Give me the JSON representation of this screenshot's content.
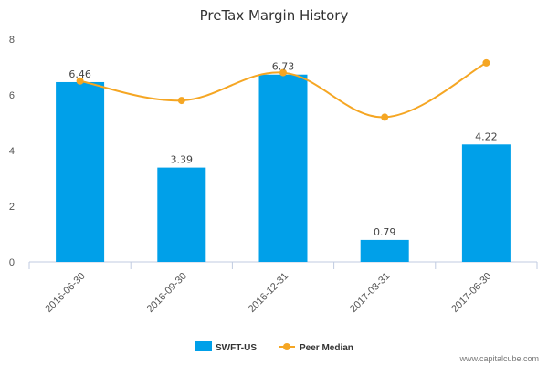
{
  "chart_data": {
    "type": "bar",
    "title": "PreTax Margin History",
    "xlabel": "",
    "ylabel": "",
    "categories": [
      "2016-06-30",
      "2016-09-30",
      "2016-12-31",
      "2017-03-31",
      "2017-06-30"
    ],
    "ylim": [
      0,
      8
    ],
    "yticks": [
      0,
      2,
      4,
      6,
      8
    ],
    "grid": false,
    "legend_position": "bottom-center",
    "series": [
      {
        "name": "SWFT-US",
        "type": "bar",
        "color": "#00a0e9",
        "values": [
          6.46,
          3.39,
          6.73,
          0.79,
          4.22
        ],
        "data_labels": [
          "6.46",
          "3.39",
          "6.73",
          "0.79",
          "4.22"
        ]
      },
      {
        "name": "Peer Median",
        "type": "line",
        "color": "#f5a623",
        "values": [
          6.5,
          5.8,
          6.8,
          5.2,
          7.15
        ]
      }
    ]
  },
  "footer": {
    "credit": "www.capitalcube.com"
  }
}
